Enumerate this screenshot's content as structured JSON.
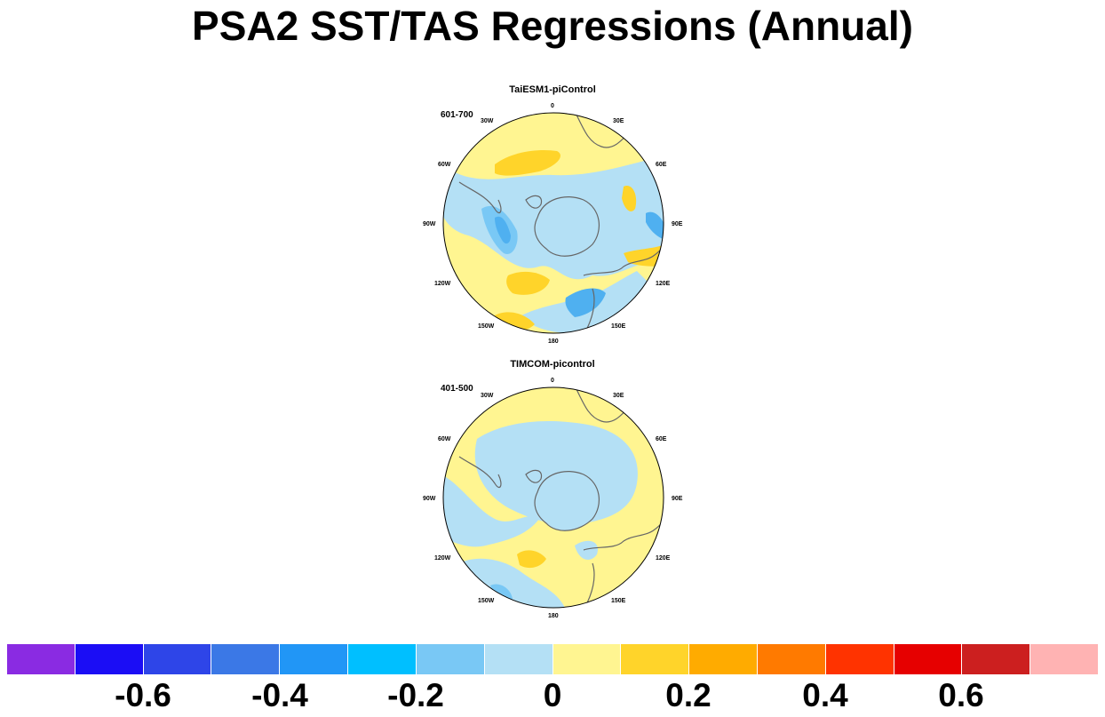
{
  "title": "PSA2 SST/TAS Regressions (Annual)",
  "panels": [
    {
      "name": "TaiESM1-piControl",
      "period": "601-700",
      "lon_labels": {
        "l0": "0",
        "l30e": "30E",
        "l60e": "60E",
        "l90e": "90E",
        "l120e": "120E",
        "l150e": "150E",
        "l180": "180",
        "l150w": "150W",
        "l120w": "120W",
        "l90w": "90W",
        "l60w": "60W",
        "l30w": "30W"
      }
    },
    {
      "name": "TIMCOM-picontrol",
      "period": "401-500",
      "lon_labels": {
        "l0": "0",
        "l30e": "30E",
        "l60e": "60E",
        "l90e": "90E",
        "l120e": "120E",
        "l150e": "150E",
        "l180": "180",
        "l150w": "150W",
        "l120w": "120W",
        "l90w": "90W",
        "l60w": "60W",
        "l30w": "30W"
      }
    }
  ],
  "colorbar": {
    "colors": [
      "#8a2be2",
      "#1b0df5",
      "#2e45e8",
      "#3b78e6",
      "#2196f6",
      "#00bfff",
      "#79c8f5",
      "#b4e0f5",
      "#fff591",
      "#ffd42a",
      "#ffab00",
      "#ff7a00",
      "#ff3300",
      "#e60000",
      "#cc1f1f",
      "#ffb3b3"
    ],
    "tick_labels": [
      "-0.6",
      "-0.4",
      "-0.2",
      "0",
      "0.2",
      "0.4",
      "0.6"
    ]
  },
  "map_colors": {
    "light_blue": "#b4e0f5",
    "mid_blue": "#79c8f5",
    "blue": "#4fb0f0",
    "light_yellow": "#fff591",
    "gold": "#ffd42a",
    "land_outline": "#666666"
  }
}
